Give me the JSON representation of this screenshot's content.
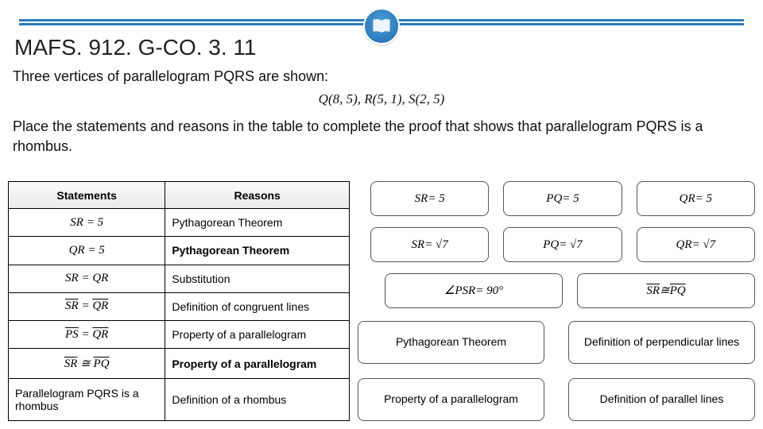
{
  "colors": {
    "rule": "#2b7bbd",
    "badge_outer": "#2b7bbd",
    "badge_inner": "#4fa0d8",
    "text": "#222222",
    "table_border": "#000000",
    "tile_border": "#555555"
  },
  "header": {
    "standard_code": "MAFS. 912. G-CO. 3. 11"
  },
  "prompt": {
    "line1": "Three vertices of parallelogram PQRS are shown:",
    "vertices": "Q(8, 5), R(5, 1), S(2, 5)",
    "line2": "Place the statements and reasons in the table to complete the proof that shows that parallelogram PQRS is a rhombus."
  },
  "table": {
    "headers": {
      "statements": "Statements",
      "reasons": "Reasons"
    },
    "rows": [
      {
        "statement_html": "<i>SR</i> = 5",
        "reason": "Pythagorean Theorem",
        "reason_bold": false
      },
      {
        "statement_html": "<i>QR</i> = 5",
        "reason": "Pythagorean Theorem",
        "reason_bold": true
      },
      {
        "statement_html": "<i>SR</i> = <i>QR</i>",
        "reason": "Substitution",
        "reason_bold": false
      },
      {
        "statement_html": "<span class=\"overline\"><i>SR</i></span> = <span class=\"overline\"><i>QR</i></span>",
        "reason": "Definition of congruent lines",
        "reason_bold": false
      },
      {
        "statement_html": "<span class=\"overline\"><i>PS</i></span> = <span class=\"overline\"><i>QR</i></span>",
        "reason": "Property of a parallelogram",
        "reason_bold": false
      },
      {
        "statement_html": "<span class=\"overline\"><i>SR</i></span> ≅ <span class=\"overline\"><i>PQ</i></span>",
        "reason": "Property of a parallelogram",
        "reason_bold": true
      },
      {
        "statement_html": "Parallelogram PQRS is a rhombus",
        "reason": "Definition of a rhombus",
        "reason_bold": false
      }
    ]
  },
  "tiles_math": [
    "SR = 5",
    "PQ = 5",
    "QR = 5",
    "SR = √7",
    "PQ = √7",
    "QR = √7"
  ],
  "tiles_math_row3": [
    "∠PSR = 90°",
    "S̅R̅ ≅ P̅Q̅"
  ],
  "tiles_text": [
    [
      "Pythagorean Theorem",
      "Definition of perpendicular lines"
    ],
    [
      "Property of a parallelogram",
      "Definition of parallel lines"
    ]
  ]
}
